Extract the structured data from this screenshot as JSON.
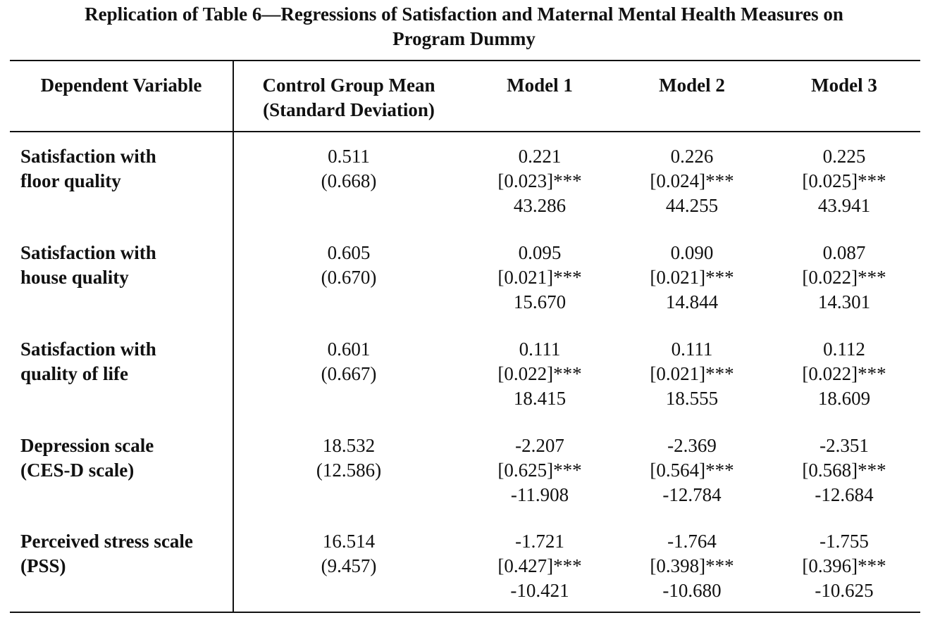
{
  "title": "Replication of Table 6—Regressions of Satisfaction and Maternal Mental Health Measures on\nProgram Dummy",
  "headers": [
    "Dependent Variable",
    "Control Group Mean\n(Standard Deviation)",
    "Model 1",
    "Model 2",
    "Model 3"
  ],
  "rows": [
    {
      "label": "Satisfaction with\nfloor quality",
      "control": "0.511\n(0.668)",
      "m1": "0.221\n[0.023]***\n43.286",
      "m2": "0.226\n[0.024]***\n44.255",
      "m3": "0.225\n[0.025]***\n43.941"
    },
    {
      "label": "Satisfaction with\nhouse quality",
      "control": "0.605\n(0.670)",
      "m1": "0.095\n[0.021]***\n15.670",
      "m2": "0.090\n[0.021]***\n14.844",
      "m3": "0.087\n[0.022]***\n14.301"
    },
    {
      "label": "Satisfaction with\nquality of life",
      "control": "0.601\n(0.667)",
      "m1": "0.111\n[0.022]***\n18.415",
      "m2": "0.111\n[0.021]***\n18.555",
      "m3": "0.112\n[0.022]***\n18.609"
    },
    {
      "label": "Depression scale\n(CES-D scale)",
      "control": "18.532\n(12.586)",
      "m1": "-2.207\n[0.625]***\n-11.908",
      "m2": "-2.369\n[0.564]***\n-12.784",
      "m3": "-2.351\n[0.568]***\n-12.684"
    },
    {
      "label": "Perceived stress scale\n(PSS)",
      "control": "16.514\n(9.457)",
      "m1": "-1.721\n[0.427]***\n-10.421",
      "m2": "-1.764\n[0.398]***\n-10.680",
      "m3": "-1.755\n[0.396]***\n-10.625"
    }
  ]
}
